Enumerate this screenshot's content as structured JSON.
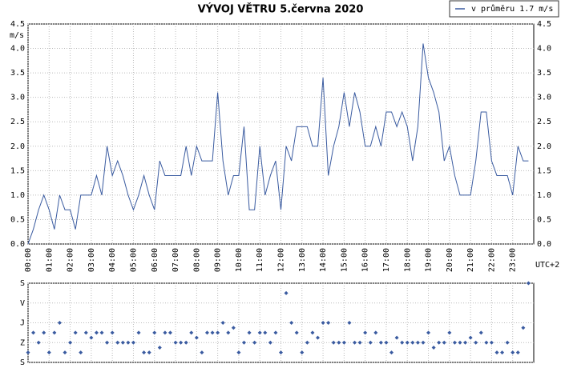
{
  "chart_data": [
    {
      "type": "line",
      "title": "VÝVOJ VĚTRU  5.června 2020",
      "y_label": "m/s",
      "x_label": "UTC+2",
      "xlim": [
        0,
        24
      ],
      "ylim": [
        0,
        4.5
      ],
      "grid": true,
      "legend": "top-right",
      "yticks": [
        {
          "value": 0,
          "label": "0.0"
        },
        0.5,
        {
          "value": 1,
          "label": "1.0"
        },
        1.5,
        {
          "value": 2,
          "label": "2.0"
        },
        2.5,
        {
          "value": 3,
          "label": "3.0"
        },
        3.5,
        {
          "value": 4,
          "label": "4.0"
        },
        4.5
      ],
      "xticks": [
        {
          "value": 0,
          "label": "00:00"
        },
        {
          "value": 1,
          "label": "01:00"
        },
        {
          "value": 2,
          "label": "02:00"
        },
        {
          "value": 3,
          "label": "03:00"
        },
        {
          "value": 4,
          "label": "04:00"
        },
        {
          "value": 5,
          "label": "05:00"
        },
        {
          "value": 6,
          "label": "06:00"
        },
        {
          "value": 7,
          "label": "07:00"
        },
        {
          "value": 8,
          "label": "08:00"
        },
        {
          "value": 9,
          "label": "09:00"
        },
        {
          "value": 10,
          "label": "10:00"
        },
        {
          "value": 11,
          "label": "11:00"
        },
        {
          "value": 12,
          "label": "12:00"
        },
        {
          "value": 13,
          "label": "13:00"
        },
        {
          "value": 14,
          "label": "14:00"
        },
        {
          "value": 15,
          "label": "15:00"
        },
        {
          "value": 16,
          "label": "16:00"
        },
        {
          "value": 17,
          "label": "17:00"
        },
        {
          "value": 18,
          "label": "18:00"
        },
        {
          "value": 19,
          "label": "19:00"
        },
        {
          "value": 20,
          "label": "20:00"
        },
        {
          "value": 21,
          "label": "21:00"
        },
        {
          "value": 22,
          "label": "22:00"
        },
        {
          "value": 23,
          "label": "23:00"
        }
      ],
      "x": [
        0,
        0.25,
        0.5,
        0.75,
        1,
        1.25,
        1.5,
        1.75,
        2,
        2.25,
        2.5,
        2.75,
        3,
        3.25,
        3.5,
        3.75,
        4,
        4.25,
        4.5,
        4.75,
        5,
        5.25,
        5.5,
        5.75,
        6,
        6.25,
        6.5,
        6.75,
        7,
        7.25,
        7.5,
        7.75,
        8,
        8.25,
        8.5,
        8.75,
        9,
        9.25,
        9.5,
        9.75,
        10,
        10.25,
        10.5,
        10.75,
        11,
        11.25,
        11.5,
        11.75,
        12,
        12.25,
        12.5,
        12.75,
        13,
        13.25,
        13.5,
        13.75,
        14,
        14.25,
        14.5,
        14.75,
        15,
        15.25,
        15.5,
        15.75,
        16,
        16.25,
        16.5,
        16.75,
        17,
        17.25,
        17.5,
        17.75,
        18,
        18.25,
        18.5,
        18.75,
        19,
        19.25,
        19.5,
        19.75,
        20,
        20.25,
        20.5,
        20.75,
        21,
        21.25,
        21.5,
        21.75,
        22,
        22.25,
        22.5,
        22.75,
        23,
        23.25,
        23.5,
        23.75
      ],
      "series": [
        {
          "name": "v průměru 1.7 m/s",
          "color": "#3a5ba0",
          "values": [
            0,
            0.3,
            0.7,
            1.0,
            0.7,
            0.3,
            1.0,
            0.7,
            0.7,
            0.3,
            1.0,
            1.0,
            1.0,
            1.4,
            1.0,
            2.0,
            1.4,
            1.7,
            1.4,
            1.0,
            0.7,
            1.0,
            1.4,
            1.0,
            0.7,
            1.7,
            1.4,
            1.4,
            1.4,
            1.4,
            2.0,
            1.4,
            2.0,
            1.7,
            1.7,
            1.7,
            3.1,
            1.7,
            1.0,
            1.4,
            1.4,
            2.4,
            0.7,
            0.7,
            2.0,
            1.0,
            1.4,
            1.7,
            0.7,
            2.0,
            1.7,
            2.4,
            2.4,
            2.4,
            2.0,
            2.0,
            3.4,
            1.4,
            2.0,
            2.4,
            3.1,
            2.4,
            3.1,
            2.7,
            2.0,
            2.0,
            2.4,
            2.0,
            2.7,
            2.7,
            2.4,
            2.7,
            2.4,
            1.7,
            2.4,
            4.1,
            3.4,
            3.1,
            2.7,
            1.7,
            2.0,
            1.4,
            1.0,
            1.0,
            1.0,
            1.7,
            2.7,
            2.7,
            1.7,
            1.4,
            1.4,
            1.4,
            1.0,
            2.0,
            1.7,
            1.7
          ]
        }
      ]
    },
    {
      "type": "scatter",
      "xlim": [
        0,
        24
      ],
      "ylim": [
        0,
        4
      ],
      "grid": true,
      "yticks": [
        {
          "value": 0,
          "label": "S"
        },
        {
          "value": 1,
          "label": "Z"
        },
        {
          "value": 2,
          "label": "J"
        },
        {
          "value": 3,
          "label": "V"
        },
        {
          "value": 4,
          "label": "S"
        }
      ],
      "xticks": [
        0,
        1,
        2,
        3,
        4,
        5,
        6,
        7,
        8,
        9,
        10,
        11,
        12,
        13,
        14,
        15,
        16,
        17,
        18,
        19,
        20,
        21,
        22,
        23
      ],
      "x": [
        0,
        0.25,
        0.5,
        0.75,
        1,
        1.25,
        1.5,
        1.75,
        2,
        2.25,
        2.5,
        2.75,
        3,
        3.25,
        3.5,
        3.75,
        4,
        4.25,
        4.5,
        4.75,
        5,
        5.25,
        5.5,
        5.75,
        6,
        6.25,
        6.5,
        6.75,
        7,
        7.25,
        7.5,
        7.75,
        8,
        8.25,
        8.5,
        8.75,
        9,
        9.25,
        9.5,
        9.75,
        10,
        10.25,
        10.5,
        10.75,
        11,
        11.25,
        11.5,
        11.75,
        12,
        12.25,
        12.5,
        12.75,
        13,
        13.25,
        13.5,
        13.75,
        14,
        14.25,
        14.5,
        14.75,
        15,
        15.25,
        15.5,
        15.75,
        16,
        16.25,
        16.5,
        16.75,
        17,
        17.25,
        17.5,
        17.75,
        18,
        18.25,
        18.5,
        18.75,
        19,
        19.25,
        19.5,
        19.75,
        20,
        20.25,
        20.5,
        20.75,
        21,
        21.25,
        21.5,
        21.75,
        22,
        22.25,
        22.5,
        22.75,
        23,
        23.25,
        23.5,
        23.75
      ],
      "color": "#3a5ba0",
      "values": [
        0.5,
        1.5,
        1.0,
        1.5,
        0.5,
        1.5,
        2.0,
        0.5,
        1.0,
        1.5,
        0.5,
        1.5,
        1.25,
        1.5,
        1.5,
        1.0,
        1.5,
        1.0,
        1.0,
        1.0,
        1.0,
        1.5,
        0.5,
        0.5,
        1.5,
        0.75,
        1.5,
        1.5,
        1.0,
        1.0,
        1.0,
        1.5,
        1.25,
        0.5,
        1.5,
        1.5,
        1.5,
        2.0,
        1.5,
        1.75,
        0.5,
        1.0,
        1.5,
        1.0,
        1.5,
        1.5,
        1.0,
        1.5,
        0.5,
        3.5,
        2.0,
        1.5,
        0.5,
        1.0,
        1.5,
        1.25,
        2.0,
        2.0,
        1.0,
        1.0,
        1.0,
        2.0,
        1.0,
        1.0,
        1.5,
        1.0,
        1.5,
        1.0,
        1.0,
        0.5,
        1.25,
        1.0,
        1.0,
        1.0,
        1.0,
        1.0,
        1.5,
        0.75,
        1.0,
        1.0,
        1.5,
        1.0,
        1.0,
        1.0,
        1.25,
        1.0,
        1.5,
        1.0,
        1.0,
        0.5,
        0.5,
        1.0,
        0.5,
        0.5,
        1.75,
        4.0
      ]
    }
  ]
}
